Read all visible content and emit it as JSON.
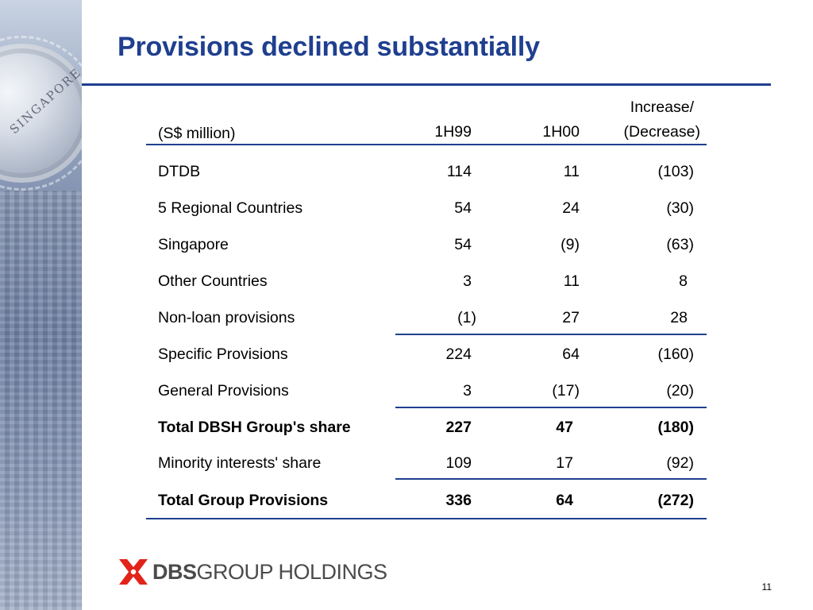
{
  "slide": {
    "title": "Provisions declined substantially",
    "page_number": "11"
  },
  "table": {
    "header": {
      "unit_label": "(S$ million)",
      "col1": "1H99",
      "col2": "1H00",
      "col3_line1": "Increase/",
      "col3_line2": "(Decrease)"
    },
    "rows": [
      {
        "label": "DTDB",
        "v1": "114",
        "v2": "11",
        "v3": "(103)"
      },
      {
        "label": "5 Regional Countries",
        "v1": "54",
        "v2": "24",
        "v3": "(30)"
      },
      {
        "label": "Singapore",
        "v1": "54",
        "v2": "(9)",
        "v3": "(63)"
      },
      {
        "label": "Other Countries",
        "v1": "3",
        "v2": "11",
        "v3": "8"
      },
      {
        "label": "Non-loan provisions",
        "v1": "(1)",
        "v2": "27",
        "v3": "28"
      },
      {
        "label": "Specific Provisions",
        "v1": "224",
        "v2": "64",
        "v3": "(160)"
      },
      {
        "label": "General Provisions",
        "v1": "3",
        "v2": "(17)",
        "v3": "(20)"
      },
      {
        "label": "Total DBSH Group's share",
        "v1": "227",
        "v2": "47",
        "v3": "(180)"
      },
      {
        "label": "Minority interests' share",
        "v1": "109",
        "v2": "17",
        "v3": "(92)"
      },
      {
        "label": "Total Group Provisions",
        "v1": "336",
        "v2": "64",
        "v3": "(272)"
      }
    ]
  },
  "logo": {
    "brand": "DBS",
    "tail": "GROUP HOLDINGS"
  },
  "decor": {
    "coin_text": "SINGAPORE"
  },
  "colors": {
    "title": "#1f3f8f",
    "rule": "#1f3f8f",
    "logo_mark": "#e2231a"
  }
}
